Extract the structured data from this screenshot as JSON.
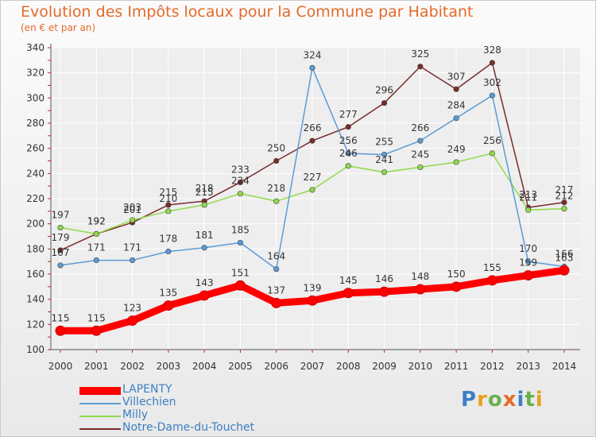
{
  "title": "Evolution des Impôts locaux pour la Commune par Habitant",
  "subtitle": "(en € et par an)",
  "logo_text": "Proxiti",
  "colors": {
    "title": "#e46a2a",
    "legend_text": "#3c7fc4",
    "axis": "#555555",
    "grid": "#ffffff",
    "tick_red": "#cc2222"
  },
  "chart_data": {
    "type": "line",
    "title": "Evolution des Impôts locaux pour la Commune par Habitant",
    "subtitle": "(en € et par an)",
    "xlabel": "",
    "ylabel": "",
    "x": [
      "2000",
      "2001",
      "2002",
      "2003",
      "2004",
      "2005",
      "2006",
      "2007",
      "2008",
      "2009",
      "2010",
      "2011",
      "2012",
      "2013",
      "2014"
    ],
    "ylim": [
      100,
      340
    ],
    "yticks": [
      100,
      120,
      140,
      160,
      180,
      200,
      220,
      240,
      260,
      280,
      300,
      320,
      340
    ],
    "grid": true,
    "legend_position": "bottom-left",
    "series": [
      {
        "name": "LAPENTY",
        "color": "#ff0000",
        "values": [
          115,
          115,
          123,
          135,
          143,
          151,
          137,
          139,
          145,
          146,
          148,
          150,
          155,
          159,
          163
        ]
      },
      {
        "name": "Villechien",
        "color": "#5b9bd5",
        "values": [
          167,
          171,
          171,
          178,
          181,
          185,
          164,
          324,
          256,
          255,
          266,
          284,
          302,
          170,
          166
        ]
      },
      {
        "name": "Milly",
        "color": "#8fd94a",
        "values": [
          197,
          192,
          203,
          210,
          215,
          224,
          218,
          227,
          246,
          241,
          245,
          249,
          256,
          211,
          212
        ]
      },
      {
        "name": "Notre-Dame-du-Touchet",
        "color": "#7a2b2b",
        "values": [
          179,
          192,
          201,
          215,
          218,
          233,
          250,
          266,
          277,
          296,
          325,
          307,
          328,
          213,
          217
        ]
      }
    ]
  }
}
